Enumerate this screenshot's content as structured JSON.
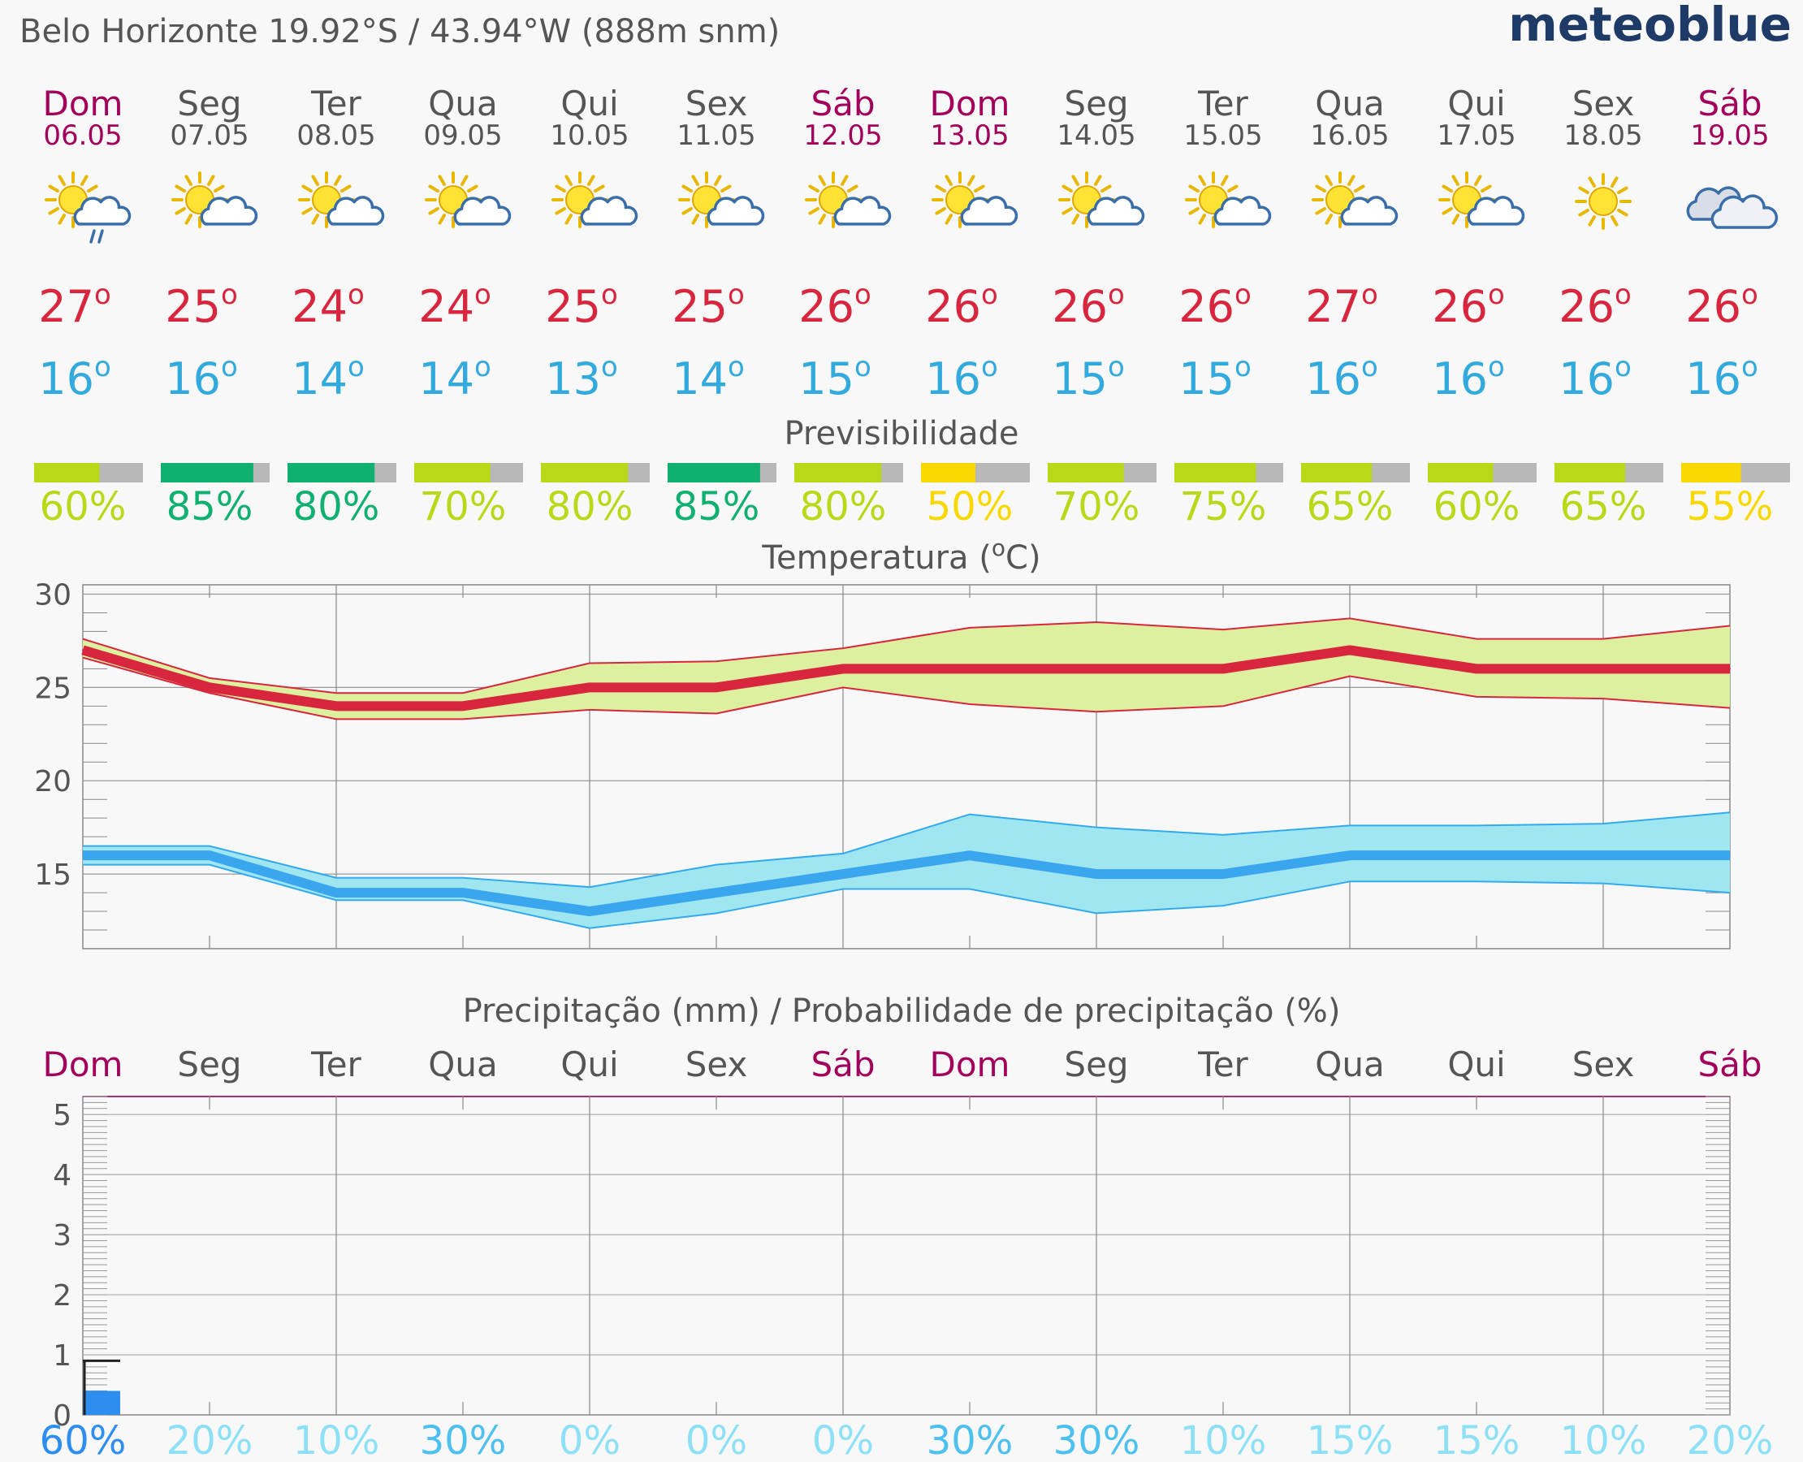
{
  "header": {
    "location": "Belo Horizonte  19.92°S / 43.94°W (888m snm)",
    "brand": "meteoblue"
  },
  "colors": {
    "weekend": "#a3005c",
    "weekday": "#555555",
    "tmax": "#d7263d",
    "tmin": "#33aadd",
    "band_max": "#dcf0a0",
    "band_min": "#a0e6f0",
    "pred_high": "#10b070",
    "pred_mid": "#b8d818",
    "pred_low": "#f8d800",
    "pred_rest": "#b8b8b8"
  },
  "days": [
    {
      "name": "Dom",
      "date": "06.05",
      "weekend": true,
      "icon": "sun-cloud-rain-icon",
      "tmax": "27",
      "tmin": "16"
    },
    {
      "name": "Seg",
      "date": "07.05",
      "weekend": false,
      "icon": "sun-cloud-icon",
      "tmax": "25",
      "tmin": "16"
    },
    {
      "name": "Ter",
      "date": "08.05",
      "weekend": false,
      "icon": "sun-cloud-icon",
      "tmax": "24",
      "tmin": "14"
    },
    {
      "name": "Qua",
      "date": "09.05",
      "weekend": false,
      "icon": "sun-cloud-icon",
      "tmax": "24",
      "tmin": "14"
    },
    {
      "name": "Qui",
      "date": "10.05",
      "weekend": false,
      "icon": "sun-cloud-icon",
      "tmax": "25",
      "tmin": "13"
    },
    {
      "name": "Sex",
      "date": "11.05",
      "weekend": false,
      "icon": "sun-cloud-icon",
      "tmax": "25",
      "tmin": "14"
    },
    {
      "name": "Sáb",
      "date": "12.05",
      "weekend": true,
      "icon": "sun-cloud-icon",
      "tmax": "26",
      "tmin": "15"
    },
    {
      "name": "Dom",
      "date": "13.05",
      "weekend": true,
      "icon": "sun-cloud-icon",
      "tmax": "26",
      "tmin": "16"
    },
    {
      "name": "Seg",
      "date": "14.05",
      "weekend": false,
      "icon": "sun-cloud-icon",
      "tmax": "26",
      "tmin": "15"
    },
    {
      "name": "Ter",
      "date": "15.05",
      "weekend": false,
      "icon": "sun-cloud-icon",
      "tmax": "26",
      "tmin": "15"
    },
    {
      "name": "Qua",
      "date": "16.05",
      "weekend": false,
      "icon": "sun-cloud-icon",
      "tmax": "27",
      "tmin": "16"
    },
    {
      "name": "Qui",
      "date": "17.05",
      "weekend": false,
      "icon": "sun-cloud-icon",
      "tmax": "26",
      "tmin": "16"
    },
    {
      "name": "Sex",
      "date": "18.05",
      "weekend": false,
      "icon": "sun-icon",
      "tmax": "26",
      "tmin": "16"
    },
    {
      "name": "Sáb",
      "date": "19.05",
      "weekend": true,
      "icon": "cloud-icon",
      "tmax": "26",
      "tmin": "16"
    }
  ],
  "predictability": {
    "title": "Previsibilidade",
    "values": [
      60,
      85,
      80,
      70,
      80,
      85,
      80,
      50,
      70,
      75,
      65,
      60,
      65,
      55
    ],
    "labels": [
      "60%",
      "85%",
      "80%",
      "70%",
      "80%",
      "85%",
      "80%",
      "50%",
      "70%",
      "75%",
      "65%",
      "60%",
      "65%",
      "55%"
    ]
  },
  "temperature_chart": {
    "title_pre": "Temperatura (",
    "title_deg": "o",
    "title_post": "C)"
  },
  "precipitation_chart": {
    "title": "Precipitação (mm) / Probabilidade de precipitação (%)"
  },
  "chart_data": [
    {
      "type": "line",
      "title": "Temperatura (°C)",
      "x": [
        "06.05",
        "07.05",
        "08.05",
        "09.05",
        "10.05",
        "11.05",
        "12.05",
        "13.05",
        "14.05",
        "15.05",
        "16.05",
        "17.05",
        "18.05",
        "19.05"
      ],
      "ylim": [
        11,
        30.5
      ],
      "yticks": [
        15,
        20,
        25,
        30
      ],
      "grid": true,
      "series": [
        {
          "values": [
            27,
            25,
            24,
            24,
            25,
            25,
            26,
            26,
            26,
            26,
            27,
            26,
            26,
            26
          ]
        },
        {
          "values": [
            27.6,
            25.5,
            24.7,
            24.7,
            26.3,
            26.4,
            27.1,
            28.2,
            28.5,
            28.1,
            28.7,
            27.6,
            27.6,
            28.3
          ]
        },
        {
          "values": [
            26.6,
            24.7,
            23.3,
            23.3,
            23.8,
            23.6,
            25.0,
            24.1,
            23.7,
            24.0,
            25.6,
            24.5,
            24.4,
            23.9
          ]
        },
        {
          "values": [
            16,
            16,
            14,
            14,
            13,
            14,
            15,
            16,
            15,
            15,
            16,
            16,
            16,
            16
          ]
        },
        {
          "values": [
            16.5,
            16.5,
            14.8,
            14.8,
            14.3,
            15.5,
            16.1,
            18.2,
            17.5,
            17.1,
            17.6,
            17.6,
            17.7,
            18.3
          ]
        },
        {
          "values": [
            15.5,
            15.5,
            13.6,
            13.6,
            12.1,
            12.9,
            14.2,
            14.2,
            12.9,
            13.3,
            14.6,
            14.6,
            14.5,
            14.0
          ]
        }
      ]
    },
    {
      "type": "bar",
      "title": "Precipitação (mm) / Probabilidade de precipitação (%)",
      "categories": [
        "Dom",
        "Seg",
        "Ter",
        "Qua",
        "Qui",
        "Sex",
        "Sáb",
        "Dom",
        "Seg",
        "Ter",
        "Qua",
        "Qui",
        "Sex",
        "Sáb"
      ],
      "values": [
        0.4,
        0,
        0,
        0,
        0,
        0,
        0,
        0,
        0,
        0,
        0,
        0,
        0,
        0
      ],
      "max_range": [
        0.9
      ],
      "ylim": [
        0,
        5.3
      ],
      "yticks": [
        0,
        1,
        2,
        3,
        4,
        5
      ],
      "probability_labels": [
        "60%",
        "20%",
        "10%",
        "30%",
        "0%",
        "0%",
        "0%",
        "30%",
        "30%",
        "10%",
        "15%",
        "15%",
        "10%",
        "20%"
      ],
      "probability_values": [
        60,
        20,
        10,
        30,
        0,
        0,
        0,
        30,
        30,
        10,
        15,
        15,
        10,
        20
      ]
    }
  ]
}
